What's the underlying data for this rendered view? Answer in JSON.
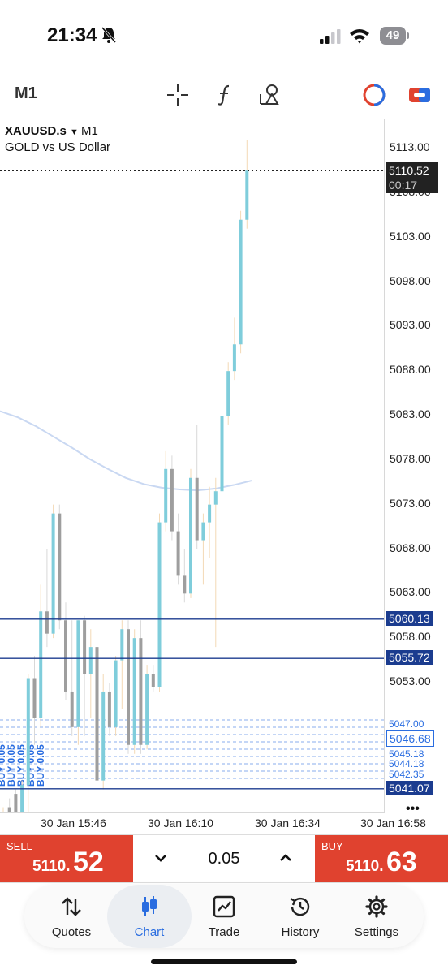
{
  "status_bar": {
    "time": "21:34",
    "battery": "49"
  },
  "toolbar": {
    "timeframe": "M1"
  },
  "chart": {
    "symbol": "XAUUSD.s",
    "symbol_timeframe": "M1",
    "description": "GOLD vs US Dollar",
    "current_price": "5110.52",
    "countdown": "00:17",
    "level_1": "5060.13",
    "level_2": "5055.72",
    "level_3": "5046.68",
    "level_4": "5041.07",
    "buy_label_text": "BUY 0.05",
    "more_label": "•••",
    "colors": {
      "bull": "#7fcddb",
      "bear": "#9e9e9e",
      "line": "#1b3c8f",
      "ma": "#c9d8f2",
      "tag": "#1b3c8f"
    }
  },
  "chart_data": {
    "type": "candlestick",
    "y_ticks": [
      "5113.00",
      "5108.00",
      "5103.00",
      "5098.00",
      "5093.00",
      "5088.00",
      "5083.00",
      "5078.00",
      "5073.00",
      "5068.00",
      "5063.00",
      "5058.00",
      "5053.00"
    ],
    "ylim": [
      5037,
      5115
    ],
    "x_ticks": [
      "30 Jan 15:46",
      "30 Jan 16:10",
      "30 Jan 16:34",
      "30 Jan 16:58"
    ],
    "horizontal_levels": [
      5060.13,
      5055.72,
      5046.68,
      5041.07
    ],
    "candles": [
      {
        "o": 5038.0,
        "h": 5039.0,
        "l": 5037.0,
        "c": 5038.5
      },
      {
        "o": 5039.0,
        "h": 5040.0,
        "l": 5038.0,
        "c": 5038.2
      },
      {
        "o": 5040.5,
        "h": 5041.0,
        "l": 5037.0,
        "c": 5037.5
      },
      {
        "o": 5037.5,
        "h": 5042.0,
        "l": 5037.0,
        "c": 5041.5
      },
      {
        "o": 5041.5,
        "h": 5054.0,
        "l": 5037.0,
        "c": 5053.5
      },
      {
        "o": 5053.5,
        "h": 5056.0,
        "l": 5046.0,
        "c": 5049.0
      },
      {
        "o": 5049.0,
        "h": 5064.0,
        "l": 5048.0,
        "c": 5061.0
      },
      {
        "o": 5061.0,
        "h": 5068.0,
        "l": 5057.0,
        "c": 5058.5
      },
      {
        "o": 5058.5,
        "h": 5073.0,
        "l": 5058.0,
        "c": 5072.0
      },
      {
        "o": 5072.0,
        "h": 5073.0,
        "l": 5059.0,
        "c": 5060.0
      },
      {
        "o": 5060.0,
        "h": 5062.0,
        "l": 5051.0,
        "c": 5052.0
      },
      {
        "o": 5052.0,
        "h": 5060.0,
        "l": 5047.0,
        "c": 5048.0
      },
      {
        "o": 5048.0,
        "h": 5060.0,
        "l": 5046.0,
        "c": 5060.0
      },
      {
        "o": 5060.0,
        "h": 5060.5,
        "l": 5047.0,
        "c": 5054.0
      },
      {
        "o": 5054.0,
        "h": 5059.0,
        "l": 5049.0,
        "c": 5057.0
      },
      {
        "o": 5057.0,
        "h": 5058.0,
        "l": 5040.0,
        "c": 5042.0
      },
      {
        "o": 5042.0,
        "h": 5054.0,
        "l": 5041.0,
        "c": 5052.0
      },
      {
        "o": 5052.0,
        "h": 5053.0,
        "l": 5047.0,
        "c": 5048.0
      },
      {
        "o": 5048.0,
        "h": 5056.0,
        "l": 5047.0,
        "c": 5055.5
      },
      {
        "o": 5055.5,
        "h": 5060.0,
        "l": 5050.0,
        "c": 5059.0
      },
      {
        "o": 5059.0,
        "h": 5060.0,
        "l": 5045.0,
        "c": 5046.0
      },
      {
        "o": 5046.0,
        "h": 5059.0,
        "l": 5045.0,
        "c": 5058.0
      },
      {
        "o": 5058.0,
        "h": 5060.0,
        "l": 5045.0,
        "c": 5046.0
      },
      {
        "o": 5046.0,
        "h": 5055.0,
        "l": 5045.5,
        "c": 5054.0
      },
      {
        "o": 5054.0,
        "h": 5055.0,
        "l": 5052.0,
        "c": 5052.5
      },
      {
        "o": 5052.5,
        "h": 5072.0,
        "l": 5052.0,
        "c": 5071.0
      },
      {
        "o": 5071.0,
        "h": 5079.0,
        "l": 5070.0,
        "c": 5077.0
      },
      {
        "o": 5077.0,
        "h": 5078.5,
        "l": 5069.0,
        "c": 5070.0
      },
      {
        "o": 5070.0,
        "h": 5072.0,
        "l": 5064.0,
        "c": 5065.0
      },
      {
        "o": 5065.0,
        "h": 5068.0,
        "l": 5062.0,
        "c": 5063.0
      },
      {
        "o": 5063.0,
        "h": 5077.0,
        "l": 5062.5,
        "c": 5076.0
      },
      {
        "o": 5076.0,
        "h": 5082.0,
        "l": 5068.0,
        "c": 5069.0
      },
      {
        "o": 5069.0,
        "h": 5072.0,
        "l": 5064.0,
        "c": 5071.0
      },
      {
        "o": 5071.0,
        "h": 5075.0,
        "l": 5067.0,
        "c": 5073.0
      },
      {
        "o": 5073.0,
        "h": 5076.0,
        "l": 5057.0,
        "c": 5074.5
      },
      {
        "o": 5074.5,
        "h": 5084.0,
        "l": 5073.0,
        "c": 5083.0
      },
      {
        "o": 5083.0,
        "h": 5089.0,
        "l": 5082.0,
        "c": 5088.0
      },
      {
        "o": 5088.0,
        "h": 5094.0,
        "l": 5087.0,
        "c": 5091.0
      },
      {
        "o": 5091.0,
        "h": 5106.0,
        "l": 5090.0,
        "c": 5105.0
      },
      {
        "o": 5105.0,
        "h": 5114.0,
        "l": 5104.0,
        "c": 5110.52
      }
    ],
    "moving_average": [
      5083.5,
      5082.8,
      5081.8,
      5080.6,
      5079.4,
      5078.1,
      5077.0,
      5076.0,
      5075.3,
      5074.9,
      5074.7,
      5074.6,
      5074.8,
      5075.2,
      5075.7
    ]
  },
  "price_axis_extra": {
    "label_a": "5047.00",
    "label_b": "5045.18",
    "label_c": "5044.18",
    "label_d": "5042.35"
  },
  "trade": {
    "sell_label": "SELL",
    "sell_price_small": "5110.",
    "sell_price_big": "52",
    "buy_label": "BUY",
    "buy_price_small": "5110.",
    "buy_price_big": "63",
    "lot": "0.05"
  },
  "nav": {
    "quotes": "Quotes",
    "chart": "Chart",
    "trade": "Trade",
    "history": "History",
    "settings": "Settings"
  }
}
